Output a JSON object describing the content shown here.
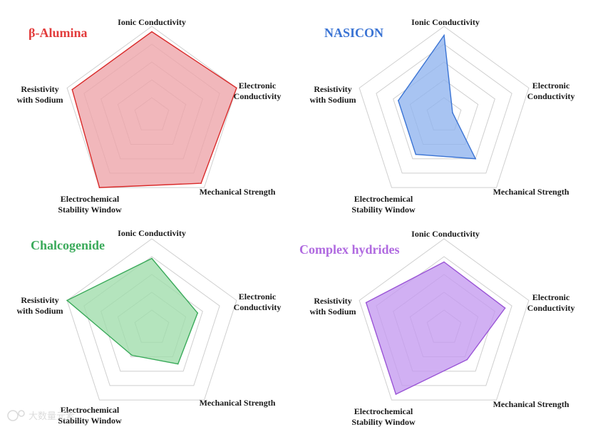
{
  "chart_data": [
    {
      "type": "radar",
      "title": "β-Alumina",
      "title_color": "#e23b3b",
      "axes": [
        "Ionic Conductivity",
        "Electronic Conductivity",
        "Mechanical Strength",
        "Electrochemical Stability Window",
        "Resistivity with Sodium"
      ],
      "rings": 5,
      "max": 5,
      "grid": true,
      "series": [
        {
          "values": [
            4.7,
            5.0,
            4.7,
            5.0,
            4.7
          ],
          "stroke": "#d92b2b",
          "fill": "#eda3a8"
        }
      ]
    },
    {
      "type": "radar",
      "title": "NASICON",
      "title_color": "#3b74d4",
      "axes": [
        "Ionic Conductivity",
        "Electronic Conductivity",
        "Mechanical Strength",
        "Electrochemical Stability Window",
        "Resistivity with Sodium"
      ],
      "rings": 5,
      "max": 5,
      "grid": true,
      "series": [
        {
          "values": [
            4.5,
            0.5,
            3.0,
            2.7,
            2.7
          ],
          "stroke": "#3b74d4",
          "fill": "#8fb4ee"
        }
      ]
    },
    {
      "type": "radar",
      "title": "Chalcogenide",
      "title_color": "#3aaa5a",
      "axes": [
        "Ionic Conductivity",
        "Electronic Conductivity",
        "Mechanical Strength",
        "Electrochemical Stability Window",
        "Resistivity with Sodium"
      ],
      "rings": 5,
      "max": 5,
      "grid": true,
      "series": [
        {
          "values": [
            3.9,
            2.7,
            2.5,
            1.9,
            5.0
          ],
          "stroke": "#3aaa5a",
          "fill": "#9fdcaa"
        }
      ]
    },
    {
      "type": "radar",
      "title": "Complex hydrides",
      "title_color": "#b06ae0",
      "axes": [
        "Ionic Conductivity",
        "Electronic Conductivity",
        "Mechanical Strength",
        "Electrochemical Stability Window",
        "Resistivity with Sodium"
      ],
      "rings": 5,
      "max": 5,
      "grid": true,
      "series": [
        {
          "values": [
            3.7,
            3.6,
            2.2,
            4.6,
            4.6
          ],
          "stroke": "#9a55d6",
          "fill": "#c49af0"
        }
      ]
    }
  ],
  "watermark": {
    "text": "大数量元素",
    "icon": "watermark-logo-icon"
  }
}
